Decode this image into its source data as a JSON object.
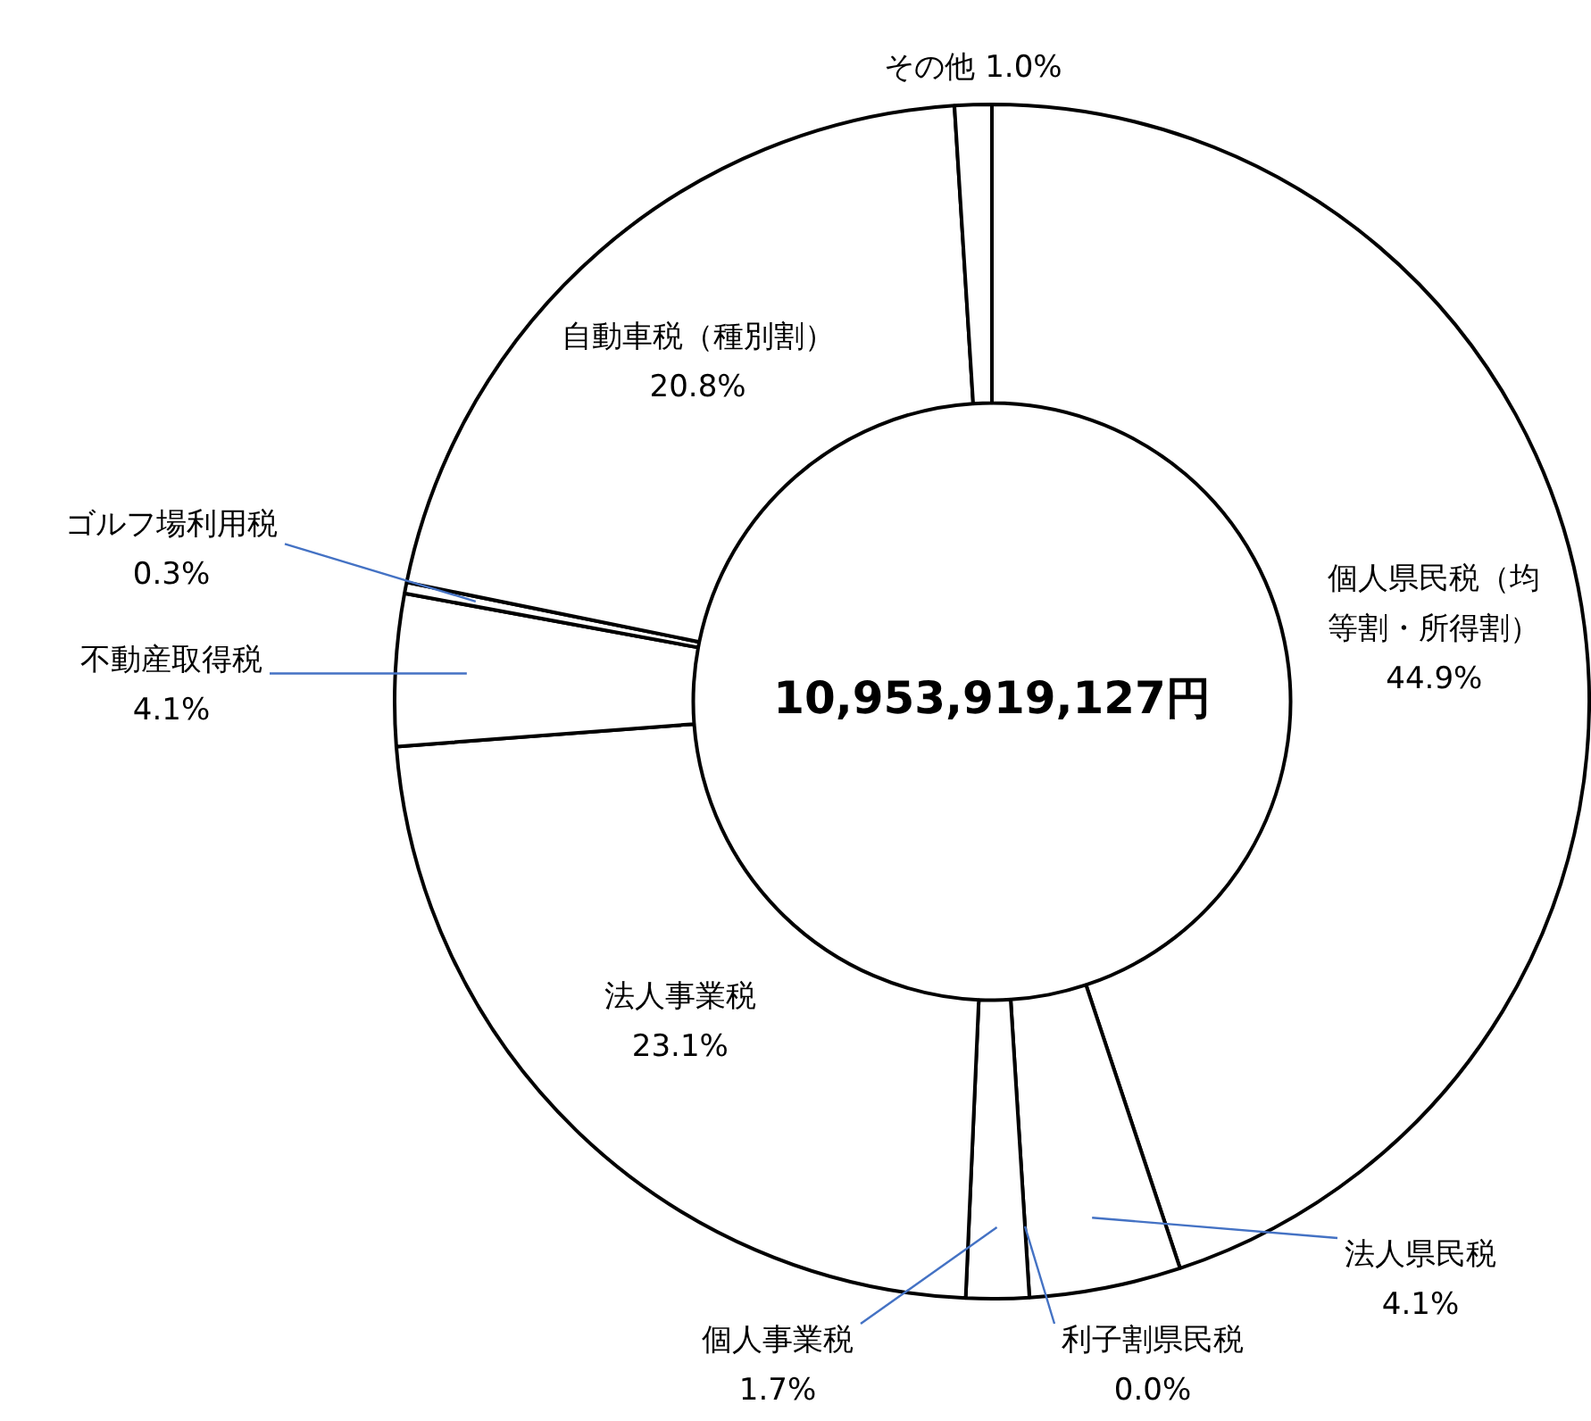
{
  "chart_data": {
    "type": "donut",
    "categories": [
      "個人県民税（均等割・所得割）",
      "法人県民税",
      "利子割県民税",
      "個人事業税",
      "法人事業税",
      "不動産取得税",
      "ゴルフ場利用税",
      "自動車税（種別割）",
      "その他"
    ],
    "values": [
      44.9,
      4.1,
      0.0,
      1.7,
      23.1,
      4.1,
      0.3,
      20.8,
      1.0
    ],
    "value_labels": [
      "44.9%",
      "4.1%",
      "0.0%",
      "1.7%",
      "23.1%",
      "4.1%",
      "0.3%",
      "20.8%",
      "1.0%"
    ],
    "colors": [
      "#ffffff",
      "#ffffff",
      "#ffffff",
      "#ffffff",
      "#ffffff",
      "#ffffff",
      "#ffffff",
      "#ffffff",
      "#ffffff"
    ],
    "annotations": [
      "10,953,919,127円"
    ],
    "legend": false
  }
}
